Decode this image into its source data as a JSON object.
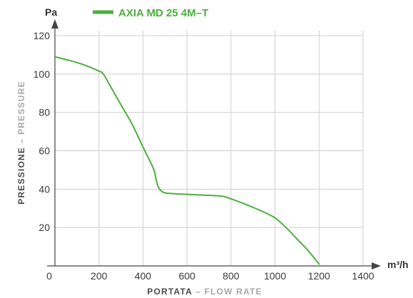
{
  "chart_data": {
    "type": "line",
    "x_unit": "m³/h",
    "y_unit": "Pa",
    "xlabel_main": "PORTATA",
    "xlabel_secondary": "FLOW RATE",
    "ylabel_main": "PRESSIONE",
    "ylabel_secondary": "PRESSURE",
    "label_separator": "–",
    "xlim": [
      0,
      1400
    ],
    "ylim": [
      0,
      120
    ],
    "x_ticks": [
      0,
      200,
      400,
      600,
      800,
      1000,
      1200,
      1400
    ],
    "y_ticks": [
      20,
      40,
      60,
      80,
      100,
      120
    ],
    "grid": true,
    "legend_position": "top",
    "series": [
      {
        "name": "AXIA MD 25 4M–T",
        "color": "#4caf3e",
        "points": [
          [
            0,
            109
          ],
          [
            50,
            107.5
          ],
          [
            100,
            106
          ],
          [
            150,
            104
          ],
          [
            200,
            101.5
          ],
          [
            220,
            100
          ],
          [
            260,
            92
          ],
          [
            300,
            84
          ],
          [
            350,
            74
          ],
          [
            400,
            62
          ],
          [
            430,
            55
          ],
          [
            450,
            50
          ],
          [
            460,
            45
          ],
          [
            470,
            41
          ],
          [
            490,
            38.5
          ],
          [
            520,
            37.8
          ],
          [
            600,
            37.3
          ],
          [
            700,
            36.8
          ],
          [
            760,
            36.3
          ],
          [
            800,
            35
          ],
          [
            850,
            32.8
          ],
          [
            900,
            30.5
          ],
          [
            950,
            28
          ],
          [
            1000,
            25
          ],
          [
            1050,
            20
          ],
          [
            1100,
            14
          ],
          [
            1150,
            8
          ],
          [
            1200,
            1
          ]
        ]
      }
    ]
  }
}
